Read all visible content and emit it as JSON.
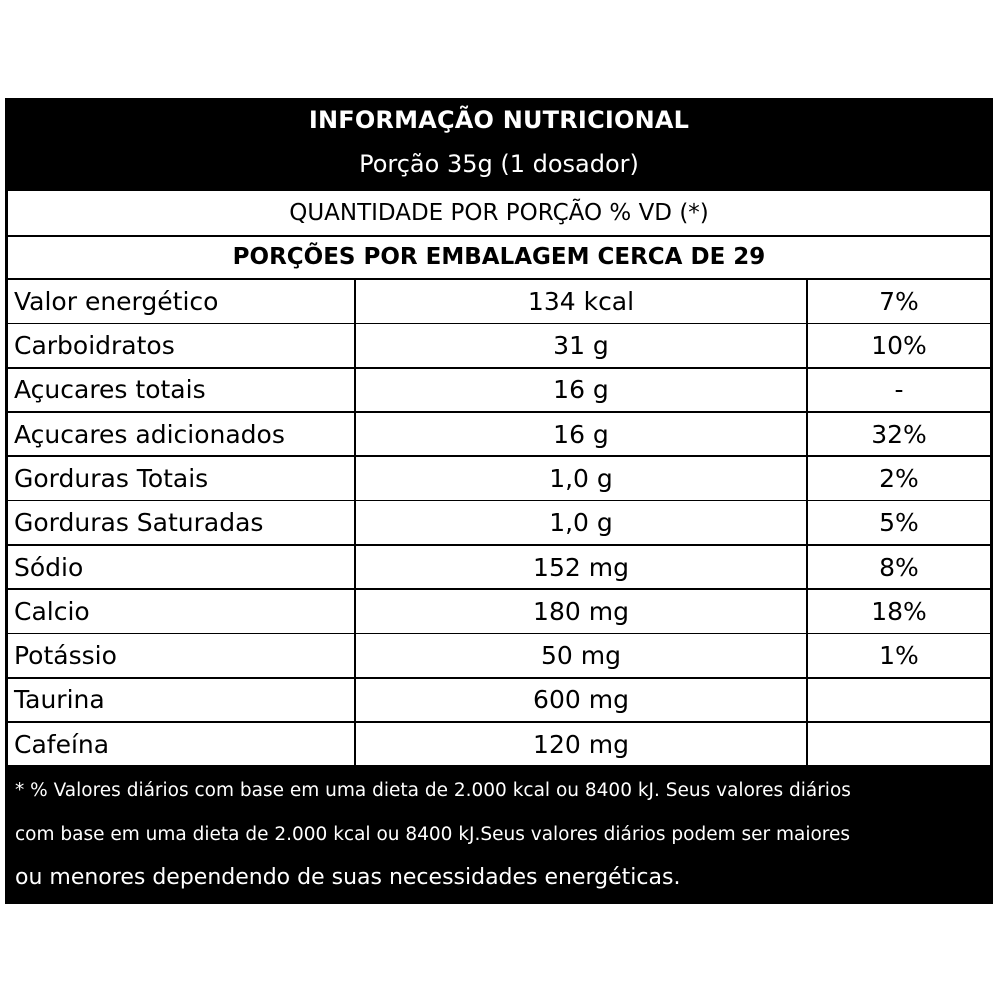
{
  "header": {
    "title": "INFORMAÇÃO NUTRICIONAL",
    "serving": "Porção 35g (1 dosador)"
  },
  "quantity_line": "QUANTIDADE POR PORÇÃO % VD (*)",
  "portions_line": "PORÇÕES POR EMBALAGEM CERCA DE 29",
  "rows": [
    {
      "name": "Valor energético",
      "amount": "134 kcal",
      "dv": "7%"
    },
    {
      "name": "Carboidratos",
      "amount": "31 g",
      "dv": "10%"
    },
    {
      "name": "Açucares totais",
      "amount": "16 g",
      "dv": "-"
    },
    {
      "name": "Açucares adicionados",
      "amount": "16 g",
      "dv": "32%"
    },
    {
      "name": "Gorduras Totais",
      "amount": "1,0 g",
      "dv": "2%"
    },
    {
      "name": "Gorduras Saturadas",
      "amount": "1,0 g",
      "dv": "5%"
    },
    {
      "name": "Sódio",
      "amount": "152 mg",
      "dv": "8%"
    },
    {
      "name": "Calcio",
      "amount": "180 mg",
      "dv": "18%"
    },
    {
      "name": "Potássio",
      "amount": "50 mg",
      "dv": "1%"
    },
    {
      "name": "Taurina",
      "amount": "600 mg",
      "dv": ""
    },
    {
      "name": "Cafeína",
      "amount": "120 mg",
      "dv": ""
    }
  ],
  "footnote": {
    "line1": "* % Valores diários com base em uma dieta de 2.000 kcal ou 8400 kJ. Seus valores diários",
    "line2": "com base em uma dieta de 2.000 kcal ou 8400 kJ.Seus valores diários podem ser maiores",
    "line3": "ou menores dependendo de suas necessidades energéticas."
  },
  "colors": {
    "background": "#000000",
    "cell": "#ffffff",
    "text_dark": "#000000",
    "text_light": "#ffffff"
  }
}
